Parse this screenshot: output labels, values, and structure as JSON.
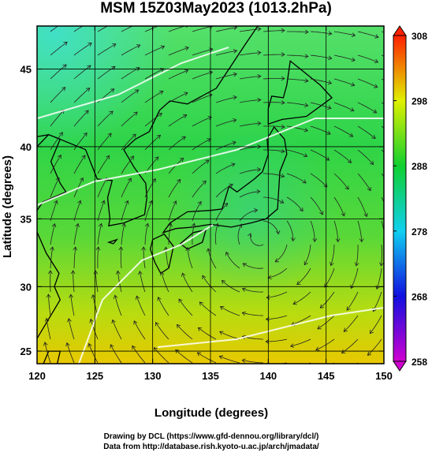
{
  "title": "MSM 15Z03May2023 (1013.2hPa)",
  "map": {
    "xlabel": "Longitude (degrees)",
    "ylabel": "Latitude  (degrees)",
    "xlim": [
      120,
      150
    ],
    "ylim": [
      24,
      47.6
    ],
    "xticks": [
      120,
      125,
      130,
      135,
      140,
      145,
      150
    ],
    "yticks": [
      25,
      30,
      35,
      40,
      45
    ]
  },
  "colorbar": {
    "lim": [
      258,
      308
    ],
    "ticks": [
      258,
      268,
      278,
      288,
      298,
      308
    ]
  },
  "footer": [
    "Drawing by DCL (https://www.gfd-dennou.org/library/dcl/)",
    "Data from http://database.rish.kyoto-u.ac.jp/arch/jmadata/"
  ]
}
